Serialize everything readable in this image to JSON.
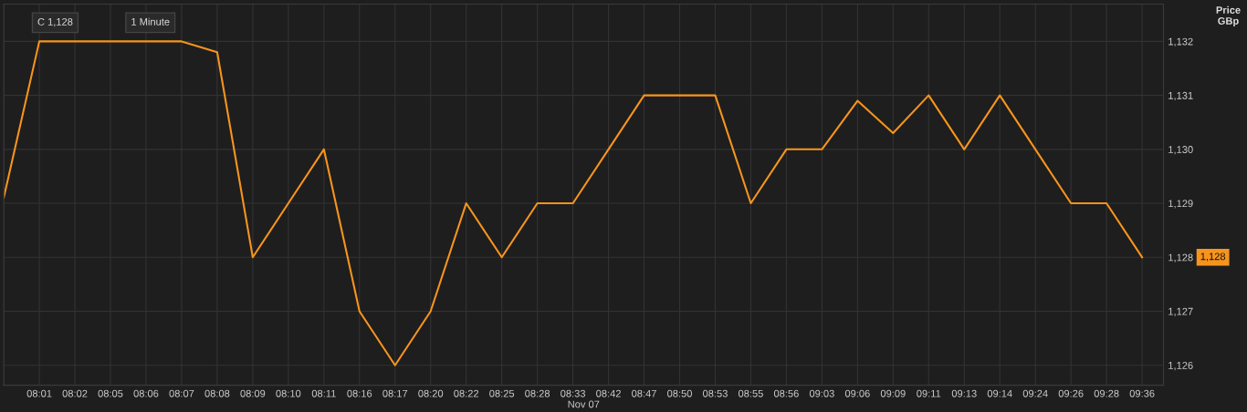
{
  "chart_data": {
    "type": "line",
    "xlabel": "Nov 07",
    "ylabel": "Price\nGBp",
    "categories": [
      null,
      "08:01",
      "08:02",
      "08:05",
      "08:06",
      "08:07",
      "08:08",
      "08:09",
      "08:10",
      "08:11",
      "08:16",
      "08:17",
      "08:20",
      "08:22",
      "08:25",
      "08:28",
      "08:33",
      "08:42",
      "08:47",
      "08:50",
      "08:53",
      "08:55",
      "08:56",
      "09:03",
      "09:06",
      "09:09",
      "09:11",
      "09:13",
      "09:14",
      "09:24",
      "09:26",
      "09:28",
      "09:36"
    ],
    "series": [
      {
        "color": "#f7941d",
        "values": [
          1129.1,
          1132,
          1132,
          1132,
          1132,
          1132,
          1131.8,
          1128,
          1129,
          1130,
          1127,
          1126,
          1127,
          1129,
          1128,
          1129,
          1129,
          1130,
          1131,
          1131,
          1131,
          1129,
          1130,
          1130,
          1130.9,
          1130.3,
          1131,
          1130,
          1131,
          1130,
          1129,
          1129,
          1128
        ]
      }
    ],
    "ylim": [
      1125.63,
      1132.69
    ],
    "yticks": [
      {
        "value": 1126,
        "label": "1,126"
      },
      {
        "value": 1127,
        "label": "1,127"
      },
      {
        "value": 1128,
        "label": "1,128"
      },
      {
        "value": 1129,
        "label": "1,129"
      },
      {
        "value": 1130,
        "label": "1,130"
      },
      {
        "value": 1131,
        "label": "1,131"
      },
      {
        "value": 1132,
        "label": "1,132"
      }
    ],
    "grid": true,
    "line_style": "solid",
    "marker": "none",
    "annotations": [
      "1,128",
      "C 1,128",
      "1 Minute"
    ]
  }
}
